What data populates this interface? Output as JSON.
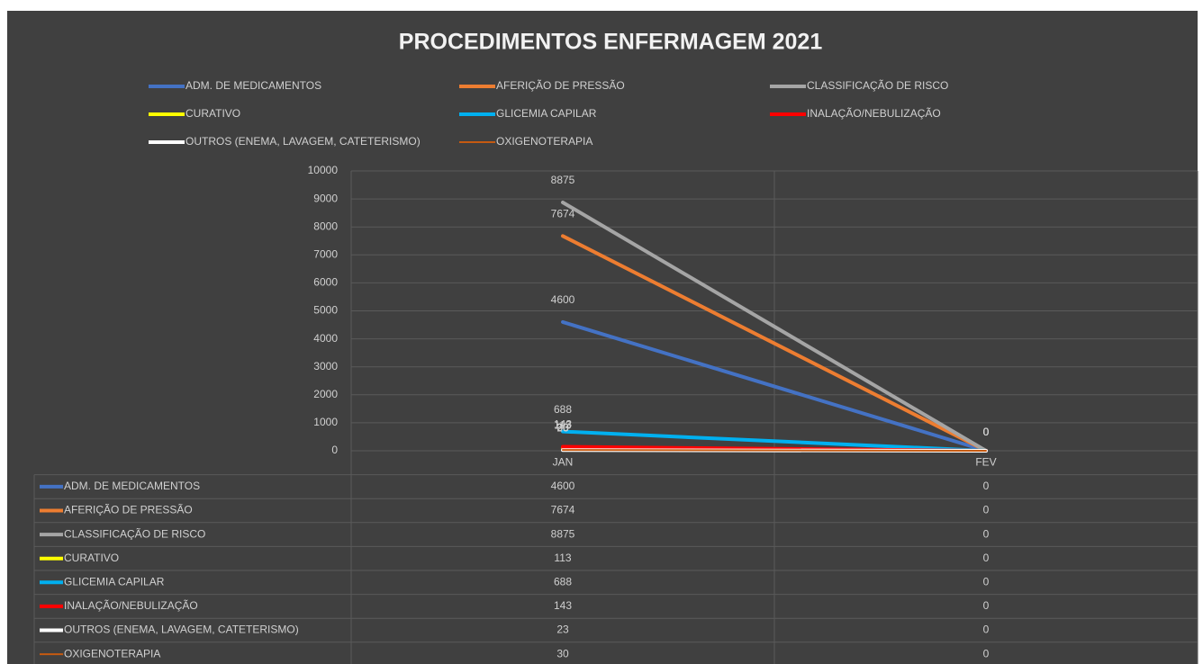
{
  "chart_data": {
    "type": "line",
    "title": "PROCEDIMENTOS ENFERMAGEM 2021",
    "categories": [
      "JAN",
      "FEV"
    ],
    "series": [
      {
        "name": "ADM. DE MEDICAMENTOS",
        "color": "#4472c4",
        "values": [
          4600,
          0
        ]
      },
      {
        "name": "AFERIÇÃO DE PRESSÃO",
        "color": "#ed7d31",
        "values": [
          7674,
          0
        ]
      },
      {
        "name": "CLASSIFICAÇÃO DE RISCO",
        "color": "#a5a5a5",
        "values": [
          8875,
          0
        ]
      },
      {
        "name": "CURATIVO",
        "color": "#ffff00",
        "values": [
          113,
          0
        ]
      },
      {
        "name": "GLICEMIA CAPILAR",
        "color": "#00b0f0",
        "values": [
          688,
          0
        ]
      },
      {
        "name": "INALAÇÃO/NEBULIZAÇÃO",
        "color": "#ff0000",
        "values": [
          143,
          0
        ]
      },
      {
        "name": "OUTROS (ENEMA, LAVAGEM, CATETERISMO)",
        "color": "#ffffff",
        "values": [
          23,
          0
        ]
      },
      {
        "name": "OXIGENOTERAPIA",
        "color": "#c55a11",
        "values": [
          30,
          0
        ]
      }
    ],
    "ylim": [
      0,
      10000
    ],
    "yticks": [
      0,
      1000,
      2000,
      3000,
      4000,
      5000,
      6000,
      7000,
      8000,
      9000,
      10000
    ],
    "grid": true,
    "legend": "top",
    "data_table": true
  }
}
